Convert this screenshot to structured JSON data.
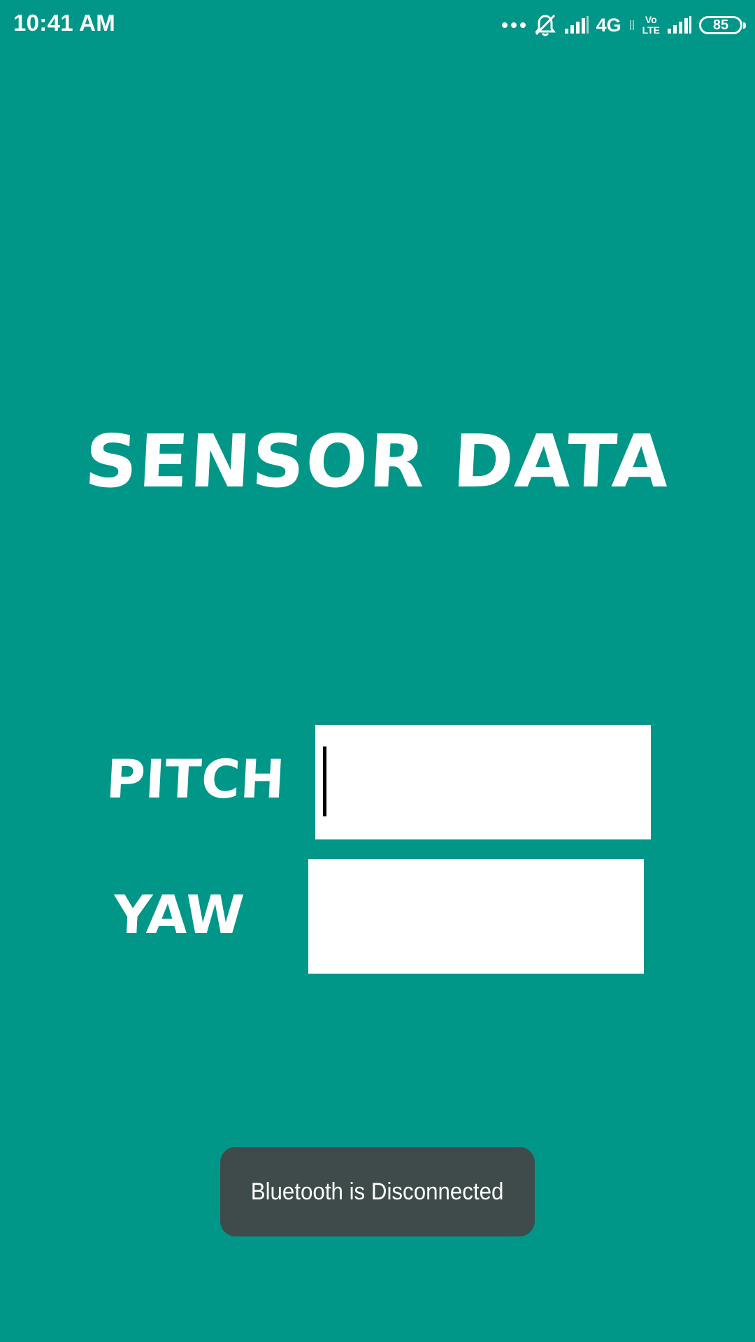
{
  "status_bar": {
    "time": "10:41 AM",
    "network_label": "4G",
    "volte_top": "Vo",
    "volte_bottom": "LTE",
    "battery_level": "85",
    "icons": [
      "more-dots-icon",
      "silent-bell-icon",
      "signal-icon",
      "volte-icon",
      "signal-icon",
      "battery-icon"
    ]
  },
  "main": {
    "title": "SENSOR DATA",
    "fields": [
      {
        "label": "PITCH",
        "value": ""
      },
      {
        "label": "YAW",
        "value": ""
      }
    ]
  },
  "toast": {
    "message": "Bluetooth is Disconnected"
  },
  "colors": {
    "background": "#009688",
    "text": "#ffffff",
    "input_background": "#ffffff",
    "toast_background": "#3e4b4a"
  }
}
